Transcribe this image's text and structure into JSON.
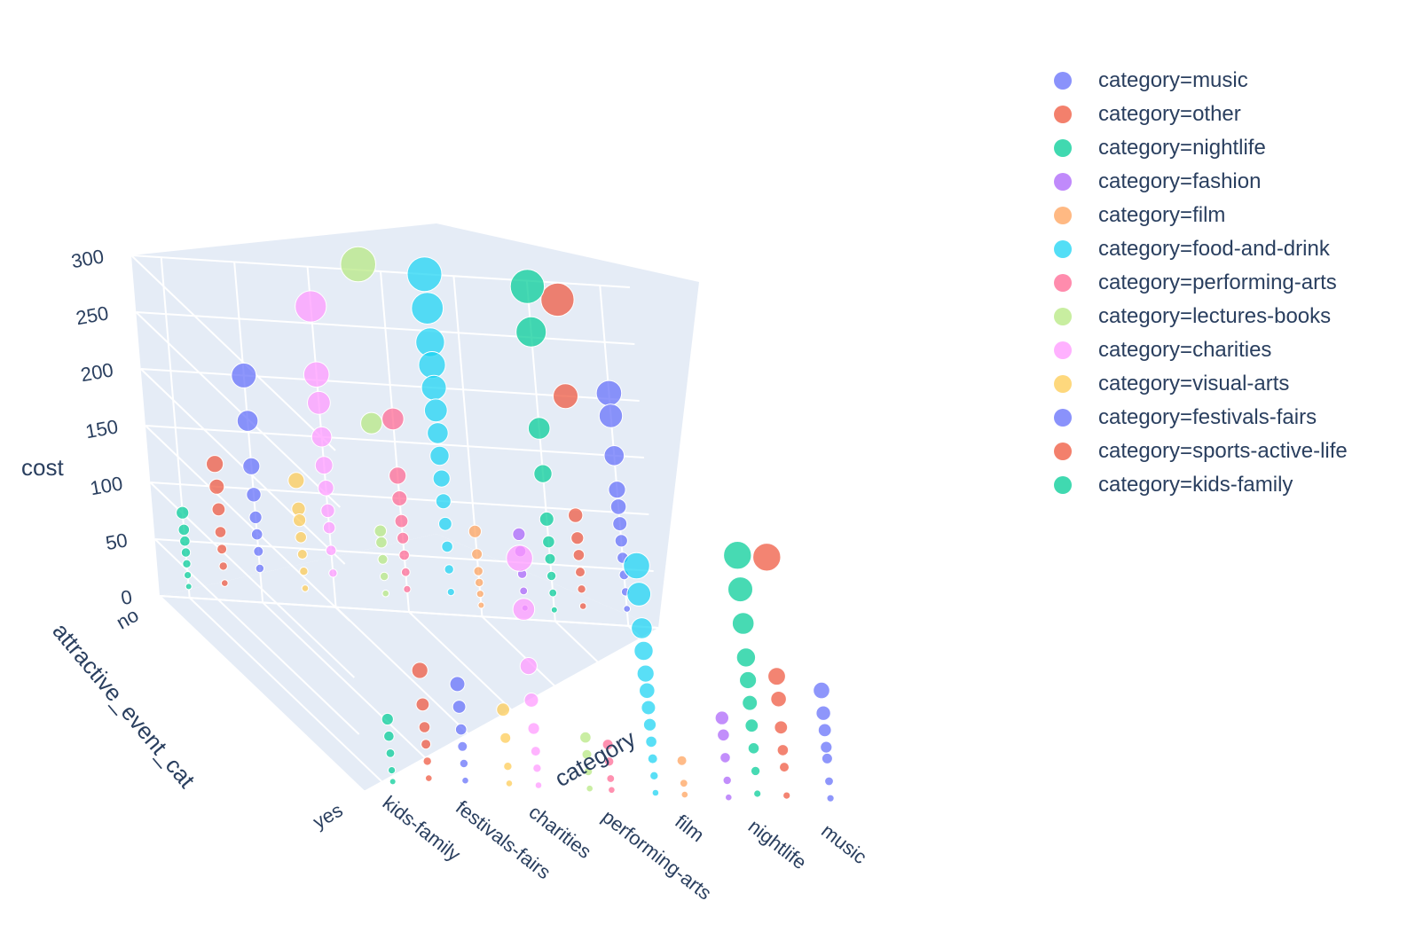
{
  "chart_data": {
    "type": "scatter3d",
    "x_axis": {
      "title": "attractive_event_cat",
      "ticks": [
        "no",
        "yes"
      ]
    },
    "y_axis": {
      "title": "category",
      "ticks": [
        "kids-family",
        "festivals-fairs",
        "charities",
        "performing-arts",
        "film",
        "nightlife",
        "music"
      ]
    },
    "z_axis": {
      "title": "cost",
      "ticks": [
        "0",
        "50",
        "100",
        "150",
        "200",
        "250",
        "300"
      ],
      "range": [
        0,
        300
      ]
    },
    "background_color": "#e5ecf6",
    "grid": true,
    "legend_position": "right",
    "series": [
      {
        "name": "category=music",
        "color": "#636efa",
        "points": [
          {
            "x": "no",
            "z": [
              15,
              30,
              45,
              60,
              75,
              90,
              105,
              120,
              150,
              185,
              205
            ]
          },
          {
            "x": "yes",
            "z": [
              20,
              35,
              55,
              65,
              80,
              95,
              115
            ]
          }
        ]
      },
      {
        "name": "category=other",
        "color": "#EF553B",
        "points": [
          {
            "x": "no",
            "z": [
              15,
              30,
              45,
              60,
              75,
              95,
              200,
              285
            ]
          },
          {
            "x": "yes",
            "z": [
              20,
              45,
              60,
              80,
              105,
              125,
              230
            ]
          }
        ]
      },
      {
        "name": "category=nightlife",
        "color": "#00cc96",
        "points": [
          {
            "x": "no",
            "z": [
              10,
              25,
              40,
              55,
              70,
              90,
              130,
              170,
              255,
              295
            ]
          },
          {
            "x": "yes",
            "z": [
              20,
              40,
              60,
              80,
              100,
              120,
              140,
              170,
              200,
              230
            ]
          }
        ]
      },
      {
        "name": "category=fashion",
        "color": "#ab63fa",
        "points": [
          {
            "x": "no",
            "z": [
              10,
              25,
              40,
              60,
              75
            ]
          },
          {
            "x": "yes",
            "z": [
              15,
              30,
              50,
              70,
              85
            ]
          }
        ]
      },
      {
        "name": "category=film",
        "color": "#FFA15A",
        "points": [
          {
            "x": "no",
            "z": [
              10,
              20,
              30,
              40,
              55,
              75
            ]
          },
          {
            "x": "yes",
            "z": [
              15,
              25,
              45
            ]
          }
        ]
      },
      {
        "name": "category=food-and-drink",
        "color": "#19d3f3",
        "points": [
          {
            "x": "no",
            "z": [
              20,
              40,
              60,
              80,
              100,
              120,
              140,
              160,
              180,
              200,
              220,
              240,
              270,
              300
            ]
          },
          {
            "x": "yes",
            "z": [
              15,
              30,
              45,
              60,
              75,
              90,
              105,
              120,
              140,
              160,
              190,
              215
            ]
          }
        ]
      },
      {
        "name": "category=performing-arts",
        "color": "#FF6692",
        "points": [
          {
            "x": "no",
            "z": [
              20,
              35,
              50,
              65,
              80,
              100,
              120,
              170
            ]
          },
          {
            "x": "yes",
            "z": [
              15,
              25,
              40,
              55
            ]
          }
        ]
      },
      {
        "name": "category=lectures-books",
        "color": "#B6E880",
        "points": [
          {
            "x": "no",
            "z": [
              15,
              30,
              45,
              60,
              70,
              165,
              305
            ]
          },
          {
            "x": "yes",
            "z": [
              15,
              30,
              45,
              60
            ]
          }
        ]
      },
      {
        "name": "category=charities",
        "color": "#FF97FF",
        "points": [
          {
            "x": "no",
            "z": [
              30,
              50,
              70,
              85,
              105,
              125,
              150,
              180,
              205,
              265
            ]
          },
          {
            "x": "yes",
            "z": [
              15,
              30,
              45,
              65,
              90,
              120,
              170,
              215
            ]
          }
        ]
      },
      {
        "name": "category=visual-arts",
        "color": "#FECB52",
        "points": [
          {
            "x": "no",
            "z": [
              15,
              30,
              45,
              60,
              75,
              85,
              110
            ]
          },
          {
            "x": "yes",
            "z": [
              15,
              30,
              55,
              80
            ]
          }
        ]
      },
      {
        "name": "category=festivals-fairs",
        "color": "#636efa",
        "points": [
          {
            "x": "no",
            "z": [
              30,
              45,
              60,
              75,
              95,
              120,
              160,
              200
            ]
          },
          {
            "x": "yes",
            "z": [
              15,
              30,
              45,
              60,
              80,
              100
            ]
          }
        ]
      },
      {
        "name": "category=sports-active-life",
        "color": "#EF553B",
        "points": [
          {
            "x": "no",
            "z": [
              15,
              30,
              45,
              60,
              80,
              100,
              120
            ]
          },
          {
            "x": "yes",
            "z": [
              15,
              30,
              45,
              60,
              80,
              110
            ]
          }
        ]
      },
      {
        "name": "category=kids-family",
        "color": "#00cc96",
        "points": [
          {
            "x": "no",
            "z": [
              10,
              20,
              30,
              40,
              50,
              60,
              75
            ]
          },
          {
            "x": "yes",
            "z": [
              10,
              20,
              35,
              50,
              65
            ]
          }
        ]
      }
    ]
  },
  "legend": {
    "items": [
      {
        "label": "category=music",
        "color": "#636efa"
      },
      {
        "label": "category=other",
        "color": "#EF553B"
      },
      {
        "label": "category=nightlife",
        "color": "#00cc96"
      },
      {
        "label": "category=fashion",
        "color": "#ab63fa"
      },
      {
        "label": "category=film",
        "color": "#FFA15A"
      },
      {
        "label": "category=food-and-drink",
        "color": "#19d3f3"
      },
      {
        "label": "category=performing-arts",
        "color": "#FF6692"
      },
      {
        "label": "category=lectures-books",
        "color": "#B6E880"
      },
      {
        "label": "category=charities",
        "color": "#FF97FF"
      },
      {
        "label": "category=visual-arts",
        "color": "#FECB52"
      },
      {
        "label": "category=festivals-fairs",
        "color": "#636efa"
      },
      {
        "label": "category=sports-active-life",
        "color": "#EF553B"
      },
      {
        "label": "category=kids-family",
        "color": "#00cc96"
      }
    ]
  }
}
